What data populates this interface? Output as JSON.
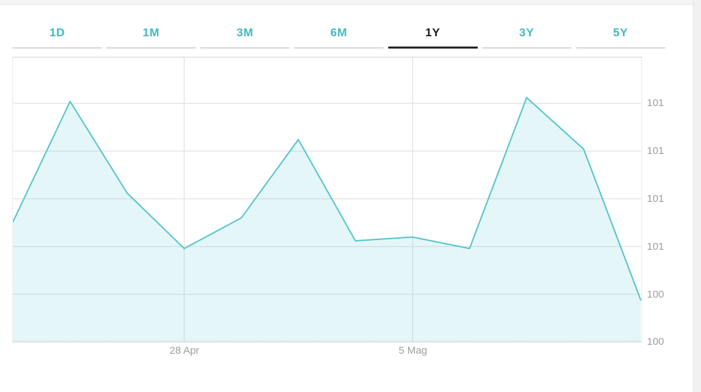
{
  "tabs": {
    "items": [
      {
        "label": "1D"
      },
      {
        "label": "1M"
      },
      {
        "label": "3M"
      },
      {
        "label": "6M"
      },
      {
        "label": "1Y"
      },
      {
        "label": "3Y"
      },
      {
        "label": "5Y"
      }
    ],
    "active_index": 4,
    "active_label": "1Y"
  },
  "colors": {
    "accent_teal": "#42b8bf",
    "line": "#56c5cb",
    "area_fill": "rgba(86,197,203,0.16)",
    "gridline": "#e4e4e4",
    "axis_text": "#9aa0a5",
    "active_tab_text": "#1d1d1f",
    "active_tab_underline": "#262626",
    "inactive_tab_underline": "#d8d8d8"
  },
  "chart_data": {
    "type": "area",
    "title": "",
    "xlabel": "",
    "ylabel": "",
    "x": [
      0,
      1,
      2,
      3,
      4,
      5,
      6,
      7,
      8,
      9,
      10,
      11
    ],
    "values": [
      100.63,
      101.26,
      100.78,
      100.49,
      100.65,
      101.06,
      100.53,
      100.55,
      100.49,
      101.28,
      101.01,
      100.22
    ],
    "ylim": [
      100.0,
      101.49
    ],
    "y_axis": {
      "values": [
        101.25,
        101.0,
        100.75,
        100.5,
        100.25,
        100.0
      ],
      "labels": [
        "101",
        "101",
        "101",
        "101",
        "100",
        "100"
      ]
    },
    "x_ticks": [
      {
        "index": 3,
        "label": "28 Apr"
      },
      {
        "index": 7,
        "label": "5 Mag"
      }
    ],
    "grid": true,
    "legend": false
  }
}
